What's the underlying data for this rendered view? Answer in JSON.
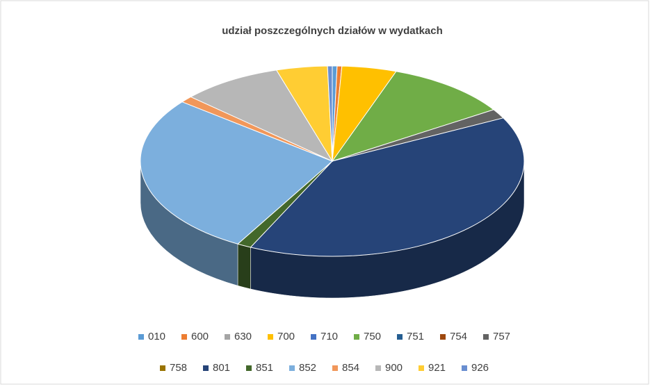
{
  "chart_data": {
    "type": "pie3d",
    "title": "udział poszczególnych działów w wydatkach",
    "categories": [
      "010",
      "600",
      "630",
      "700",
      "710",
      "750",
      "751",
      "754",
      "757",
      "758",
      "801",
      "851",
      "852",
      "854",
      "900",
      "921",
      "926"
    ],
    "values": [
      0.4,
      0.4,
      0,
      4.6,
      0,
      10.5,
      0,
      0,
      1.6,
      0,
      39.5,
      1.2,
      27.5,
      1.1,
      8.5,
      4.3,
      0.4
    ],
    "colors": [
      "#5b9bd5",
      "#ed7d31",
      "#a5a5a5",
      "#ffc000",
      "#4472c4",
      "#70ad47",
      "#255e91",
      "#9e480e",
      "#636363",
      "#997300",
      "#264478",
      "#43682b",
      "#7cafdd",
      "#f1975a",
      "#b7b7b7",
      "#ffcd33",
      "#698ed0"
    ],
    "legend": "bottom"
  }
}
